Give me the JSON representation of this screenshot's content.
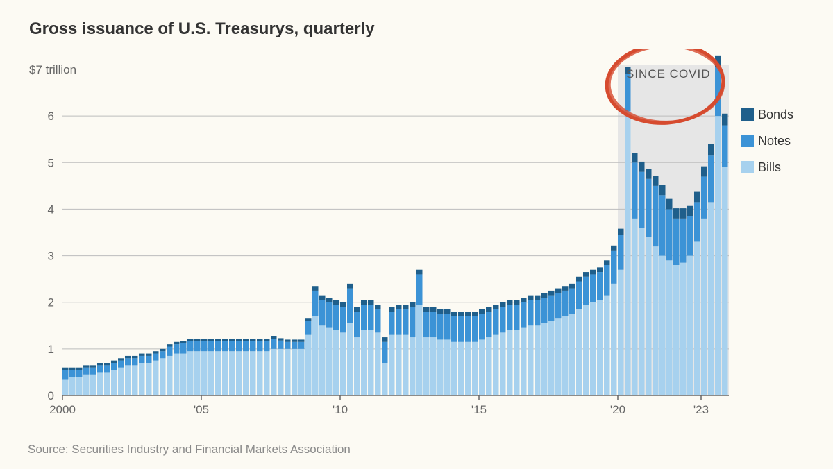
{
  "title": "Gross issuance of U.S. Treasurys, quarterly",
  "source": "Source: Securities Industry and Financial Markets Association",
  "chart": {
    "type": "stacked-bar",
    "y_unit_label": "$7 trillion",
    "ylim": [
      0,
      7
    ],
    "yticks": [
      0,
      1,
      2,
      3,
      4,
      5,
      6
    ],
    "xticks": [
      {
        "year": 2000,
        "label": "2000"
      },
      {
        "year": 2005,
        "label": "'05"
      },
      {
        "year": 2010,
        "label": "'10"
      },
      {
        "year": 2015,
        "label": "'15"
      },
      {
        "year": 2020,
        "label": "'20"
      },
      {
        "year": 2023,
        "label": "'23"
      }
    ],
    "colors": {
      "bonds": "#1f5f8b",
      "notes": "#3c93d6",
      "bills": "#a7d1ee",
      "grid": "#bdbdbd",
      "axis": "#666666",
      "background": "#fcfaf3",
      "covid_band": "#e6e6e6",
      "annotation_ring": "#d64b2f"
    },
    "legend": [
      {
        "key": "bonds",
        "label": "Bonds"
      },
      {
        "key": "notes",
        "label": "Notes"
      },
      {
        "key": "bills",
        "label": "Bills"
      }
    ],
    "covid_band": {
      "start_year": 2020.0,
      "end_year": 2024.0,
      "label": "SINCE COVID"
    },
    "annotation_ellipse": {
      "cx_year": 2021.7,
      "cy_val": 6.7,
      "rx_years": 2.1,
      "ry_val": 0.85,
      "stroke_width": 5
    },
    "bar_gap_ratio": 0.15,
    "start_year": 2000.0,
    "quarters_count": 96,
    "series": {
      "bills": [
        0.35,
        0.4,
        0.4,
        0.45,
        0.45,
        0.5,
        0.5,
        0.55,
        0.6,
        0.65,
        0.65,
        0.7,
        0.7,
        0.75,
        0.8,
        0.85,
        0.9,
        0.9,
        0.95,
        0.95,
        0.95,
        0.95,
        0.95,
        0.95,
        0.95,
        0.95,
        0.95,
        0.95,
        0.95,
        0.95,
        1.0,
        1.0,
        1.0,
        1.0,
        1.0,
        1.3,
        1.7,
        1.5,
        1.45,
        1.4,
        1.35,
        1.55,
        1.25,
        1.4,
        1.4,
        1.35,
        0.7,
        1.3,
        1.3,
        1.3,
        1.25,
        1.95,
        1.25,
        1.25,
        1.2,
        1.2,
        1.15,
        1.15,
        1.15,
        1.15,
        1.2,
        1.25,
        1.3,
        1.35,
        1.4,
        1.4,
        1.45,
        1.5,
        1.5,
        1.55,
        1.6,
        1.65,
        1.7,
        1.75,
        1.85,
        1.95,
        2.0,
        2.05,
        2.15,
        2.4,
        2.7,
        6.1,
        3.8,
        3.6,
        3.4,
        3.2,
        3.0,
        2.9,
        2.8,
        2.85,
        3.0,
        3.3,
        3.8,
        4.15,
        6.0,
        4.9
      ],
      "notes": [
        0.2,
        0.15,
        0.15,
        0.15,
        0.15,
        0.15,
        0.15,
        0.15,
        0.15,
        0.15,
        0.15,
        0.15,
        0.15,
        0.15,
        0.15,
        0.2,
        0.2,
        0.22,
        0.22,
        0.22,
        0.22,
        0.22,
        0.22,
        0.22,
        0.22,
        0.22,
        0.22,
        0.22,
        0.22,
        0.22,
        0.22,
        0.18,
        0.15,
        0.15,
        0.15,
        0.3,
        0.55,
        0.55,
        0.55,
        0.55,
        0.55,
        0.75,
        0.55,
        0.55,
        0.55,
        0.5,
        0.45,
        0.5,
        0.55,
        0.55,
        0.65,
        0.65,
        0.55,
        0.55,
        0.55,
        0.55,
        0.55,
        0.55,
        0.55,
        0.55,
        0.55,
        0.55,
        0.55,
        0.55,
        0.55,
        0.55,
        0.55,
        0.55,
        0.55,
        0.55,
        0.55,
        0.55,
        0.55,
        0.55,
        0.6,
        0.6,
        0.6,
        0.6,
        0.65,
        0.7,
        0.75,
        0.8,
        1.2,
        1.2,
        1.25,
        1.3,
        1.3,
        1.1,
        1.0,
        0.95,
        0.85,
        0.85,
        0.9,
        1.0,
        1.05,
        0.9
      ],
      "bonds": [
        0.05,
        0.05,
        0.05,
        0.05,
        0.05,
        0.05,
        0.05,
        0.05,
        0.05,
        0.05,
        0.05,
        0.05,
        0.05,
        0.05,
        0.05,
        0.05,
        0.05,
        0.05,
        0.05,
        0.05,
        0.05,
        0.05,
        0.05,
        0.05,
        0.05,
        0.05,
        0.05,
        0.05,
        0.05,
        0.05,
        0.05,
        0.05,
        0.05,
        0.05,
        0.05,
        0.05,
        0.1,
        0.1,
        0.1,
        0.1,
        0.1,
        0.1,
        0.1,
        0.1,
        0.1,
        0.1,
        0.1,
        0.1,
        0.1,
        0.1,
        0.1,
        0.1,
        0.1,
        0.1,
        0.1,
        0.1,
        0.1,
        0.1,
        0.1,
        0.1,
        0.1,
        0.1,
        0.1,
        0.1,
        0.1,
        0.1,
        0.1,
        0.1,
        0.1,
        0.1,
        0.1,
        0.1,
        0.1,
        0.1,
        0.1,
        0.1,
        0.1,
        0.1,
        0.1,
        0.12,
        0.13,
        0.15,
        0.2,
        0.22,
        0.22,
        0.22,
        0.22,
        0.22,
        0.22,
        0.22,
        0.22,
        0.22,
        0.22,
        0.25,
        0.25,
        0.25
      ]
    }
  }
}
